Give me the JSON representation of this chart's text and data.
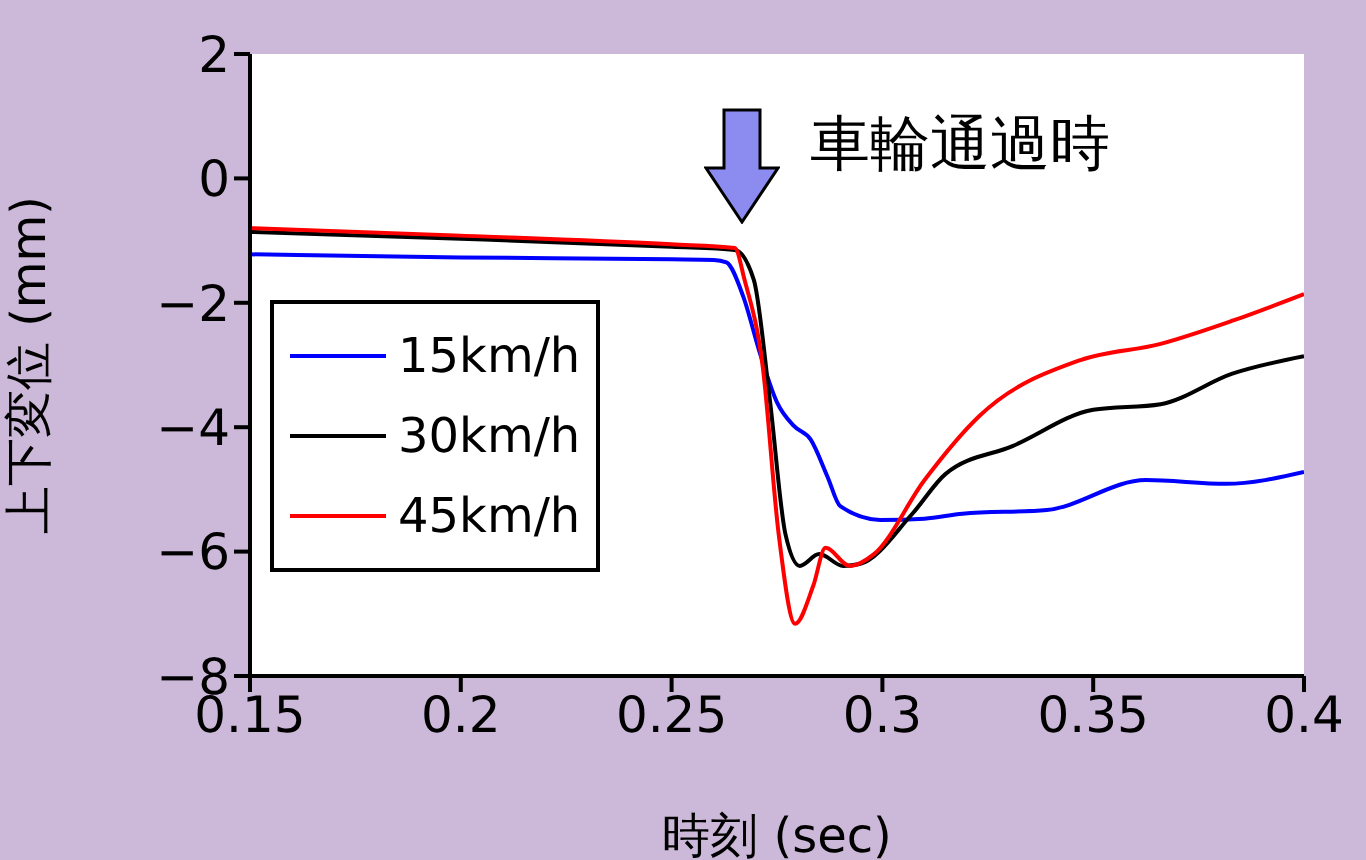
{
  "chart_data": {
    "type": "line",
    "xlabel": "時刻 (sec)",
    "ylabel": "上下変位 (mm)",
    "annotations": [
      "車輪通過時"
    ],
    "xlim": [
      0.15,
      0.4
    ],
    "xticks": [
      0.15,
      0.2,
      0.25,
      0.3,
      0.35,
      0.4
    ],
    "ylim": [
      -8,
      2
    ],
    "yticks": [
      -8,
      -6,
      -4,
      -2,
      0,
      2
    ],
    "grid": false,
    "legend": "left",
    "marker": "none",
    "line_style": "solid",
    "series": [
      {
        "name": "15km/h",
        "color": "#0000ff",
        "x": [
          0.15,
          0.2,
          0.25,
          0.26,
          0.263,
          0.267,
          0.271,
          0.275,
          0.279,
          0.283,
          0.287,
          0.29,
          0.2995,
          0.31,
          0.319,
          0.339,
          0.3625,
          0.3815,
          0.4
        ],
        "values": [
          -1.22,
          -1.27,
          -1.3,
          -1.31,
          -1.35,
          -1.9,
          -2.82,
          -3.6,
          -3.98,
          -4.2,
          -4.8,
          -5.27,
          -5.49,
          -5.47,
          -5.39,
          -5.33,
          -4.85,
          -4.91,
          -4.72
        ]
      },
      {
        "name": "30km/h",
        "color": "#000000",
        "x": [
          0.15,
          0.2,
          0.25,
          0.265,
          0.2695,
          0.2733,
          0.277,
          0.2804,
          0.285,
          0.2907,
          0.2946,
          0.307,
          0.315,
          0.331,
          0.35,
          0.366,
          0.383,
          0.4
        ],
        "values": [
          -0.86,
          -0.97,
          -1.1,
          -1.15,
          -1.63,
          -3.56,
          -5.72,
          -6.23,
          -6.04,
          -6.23,
          -6.2,
          -5.4,
          -4.75,
          -4.3,
          -3.72,
          -3.63,
          -3.14,
          -2.86
        ]
      },
      {
        "name": "45km/h",
        "color": "#ff0000",
        "x": [
          0.15,
          0.2,
          0.25,
          0.265,
          0.2673,
          0.2716,
          0.2754,
          0.2793,
          0.2836,
          0.2865,
          0.2923,
          0.298,
          0.31,
          0.323,
          0.347,
          0.366,
          0.3834,
          0.4
        ],
        "values": [
          -0.8,
          -0.92,
          -1.06,
          -1.12,
          -1.63,
          -3.02,
          -5.72,
          -7.16,
          -6.55,
          -5.94,
          -6.23,
          -6.04,
          -4.85,
          -3.82,
          -2.92,
          -2.66,
          -2.28,
          -1.86
        ]
      }
    ]
  }
}
